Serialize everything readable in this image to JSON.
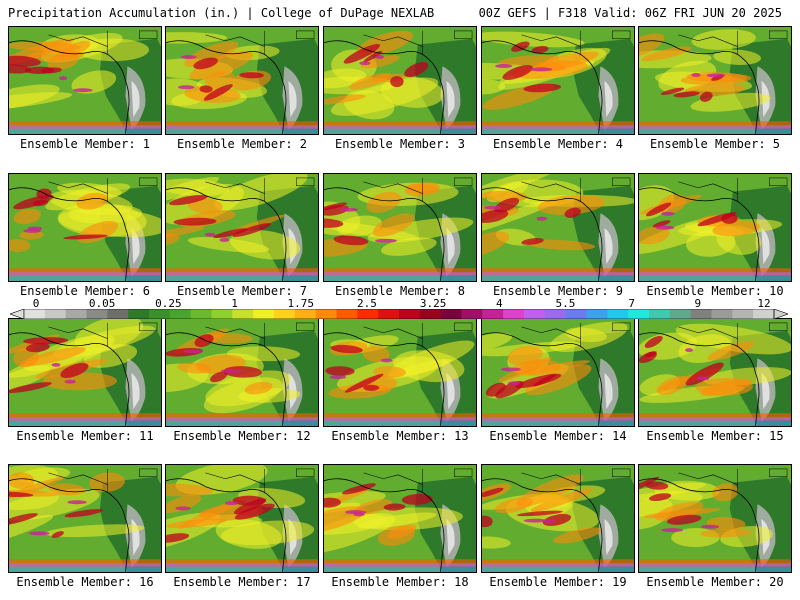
{
  "header": {
    "left": "Precipitation Accumulation (in.) | College of DuPage NEXLAB",
    "right": "00Z GEFS | F318 Valid: 06Z FRI JUN 20 2025"
  },
  "panels": [
    {
      "label": "Ensemble Member: 1"
    },
    {
      "label": "Ensemble Member: 2"
    },
    {
      "label": "Ensemble Member: 3"
    },
    {
      "label": "Ensemble Member: 4"
    },
    {
      "label": "Ensemble Member: 5"
    },
    {
      "label": "Ensemble Member: 6"
    },
    {
      "label": "Ensemble Member: 7"
    },
    {
      "label": "Ensemble Member: 8"
    },
    {
      "label": "Ensemble Member: 9"
    },
    {
      "label": "Ensemble Member: 10"
    },
    {
      "label": "Ensemble Member: 11"
    },
    {
      "label": "Ensemble Member: 12"
    },
    {
      "label": "Ensemble Member: 13"
    },
    {
      "label": "Ensemble Member: 14"
    },
    {
      "label": "Ensemble Member: 15"
    },
    {
      "label": "Ensemble Member: 16"
    },
    {
      "label": "Ensemble Member: 17"
    },
    {
      "label": "Ensemble Member: 18"
    },
    {
      "label": "Ensemble Member: 19"
    },
    {
      "label": "Ensemble Member: 20"
    }
  ],
  "colorbar": {
    "labels": [
      "0",
      "0.05",
      "0.25",
      "1",
      "1.75",
      "2.5",
      "3.25",
      "4",
      "5.5",
      "7",
      "9",
      "12"
    ],
    "colors": [
      "#e0e0e0",
      "#c8c8c8",
      "#a8a8a8",
      "#8a8a8a",
      "#6e6e6e",
      "#2f7a2a",
      "#3c8f2c",
      "#4aa32e",
      "#6bb92f",
      "#8fcf2f",
      "#c6e02c",
      "#f0f028",
      "#ffd21e",
      "#ffb014",
      "#ff8a0c",
      "#ff5a00",
      "#ff2a00",
      "#e01010",
      "#c00020",
      "#9a0020",
      "#7a0040",
      "#a0106a",
      "#c8209a",
      "#e040d0",
      "#c060f0",
      "#9a6af0",
      "#6a7cf0",
      "#40a0f0",
      "#20c8f0",
      "#20e8e0",
      "#40c8b0",
      "#60a890",
      "#808080",
      "#9a9a9a",
      "#b4b4b4",
      "#d0d0d0"
    ]
  }
}
